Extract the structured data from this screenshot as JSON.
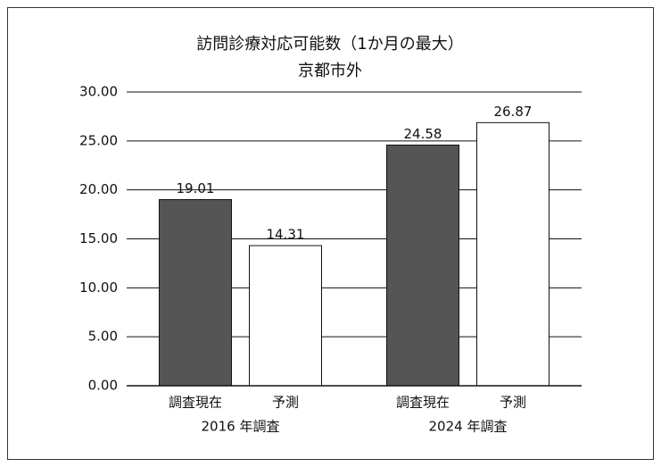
{
  "chart_data": {
    "type": "bar",
    "title": "訪問診療対応可能数（1か月の最大）",
    "subtitle": "京都市外",
    "categories": [
      "2016 年調査",
      "2024 年調査"
    ],
    "series": [
      {
        "name": "調査現在",
        "color": "#555555",
        "values": [
          19.01,
          24.58
        ]
      },
      {
        "name": "予測",
        "color": "#ffffff",
        "values": [
          14.31,
          26.87
        ]
      }
    ],
    "ylim": [
      0,
      30
    ],
    "yticks": [
      {
        "value": 0,
        "label": "0.00"
      },
      {
        "value": 5,
        "label": "5.00"
      },
      {
        "value": 10,
        "label": "10.00"
      },
      {
        "value": 15,
        "label": "15.00"
      },
      {
        "value": 20,
        "label": "20.00"
      },
      {
        "value": 25,
        "label": "25.00"
      },
      {
        "value": 30,
        "label": "30.00"
      }
    ],
    "grid": true
  }
}
